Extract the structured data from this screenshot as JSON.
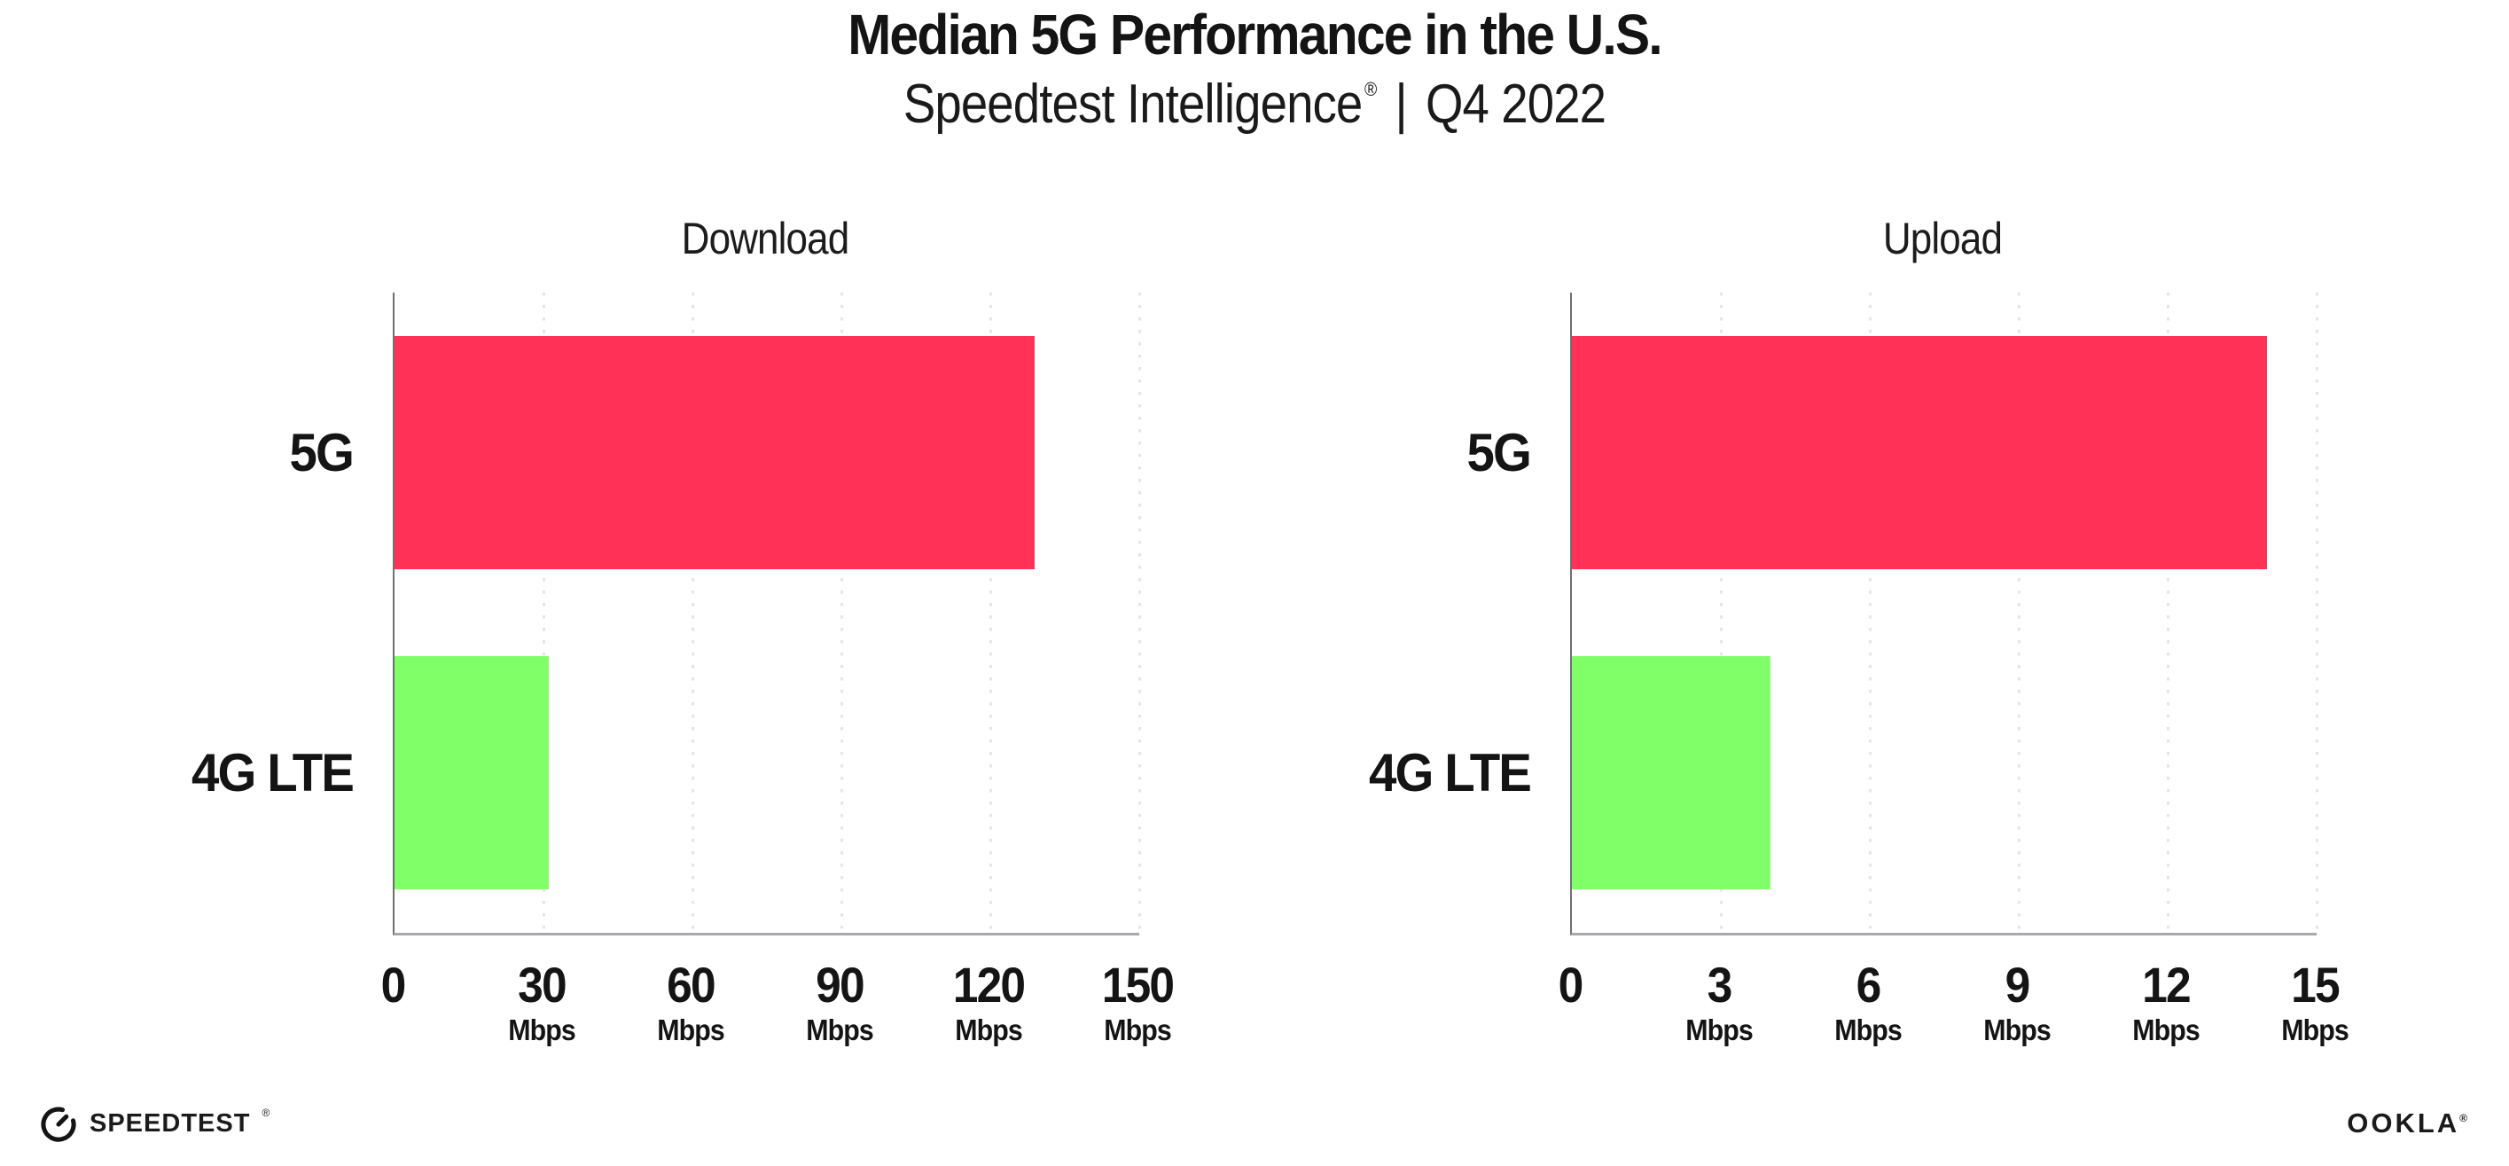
{
  "header": {
    "title": "Median 5G Performance in the U.S.",
    "subtitle": {
      "brand": "Speedtest Intelligence",
      "registered_mark": "®",
      "separator": "|",
      "period": "Q4 2022"
    }
  },
  "chart_data": [
    {
      "type": "bar",
      "orientation": "horizontal",
      "title": "Download",
      "categories": [
        "5G",
        "4G LTE"
      ],
      "values": [
        129,
        31
      ],
      "unit": "Mbps",
      "xlim": [
        0,
        150
      ],
      "xticks": [
        {
          "value": 0,
          "label": "0",
          "unit": ""
        },
        {
          "value": 30,
          "label": "30",
          "unit": "Mbps"
        },
        {
          "value": 60,
          "label": "60",
          "unit": "Mbps"
        },
        {
          "value": 90,
          "label": "90",
          "unit": "Mbps"
        },
        {
          "value": 120,
          "label": "120",
          "unit": "Mbps"
        },
        {
          "value": 150,
          "label": "150",
          "unit": "Mbps"
        }
      ],
      "bar_colors": [
        "#ff3156",
        "#80ff68"
      ],
      "grid": "dotted-vertical",
      "legend": "none"
    },
    {
      "type": "bar",
      "orientation": "horizontal",
      "title": "Upload",
      "categories": [
        "5G",
        "4G LTE"
      ],
      "values": [
        14,
        4
      ],
      "unit": "Mbps",
      "xlim": [
        0,
        15
      ],
      "xticks": [
        {
          "value": 0,
          "label": "0",
          "unit": ""
        },
        {
          "value": 3,
          "label": "3",
          "unit": "Mbps"
        },
        {
          "value": 6,
          "label": "6",
          "unit": "Mbps"
        },
        {
          "value": 9,
          "label": "9",
          "unit": "Mbps"
        },
        {
          "value": 12,
          "label": "12",
          "unit": "Mbps"
        },
        {
          "value": 15,
          "label": "15",
          "unit": "Mbps"
        }
      ],
      "bar_colors": [
        "#ff3156",
        "#80ff68"
      ],
      "grid": "dotted-vertical",
      "legend": "none"
    }
  ],
  "footer": {
    "speedtest": {
      "label": "SPEEDTEST",
      "mark": "®"
    },
    "ookla": {
      "label": "OOKLA",
      "mark": "®"
    }
  },
  "colors": {
    "bar_5g": "#ff3156",
    "bar_4g_lte": "#80ff68",
    "x_axis_line": "#a7a7ad",
    "y_axis_line": "#6f6f77",
    "gridline": "#e4e4ef",
    "text": "#141414"
  }
}
